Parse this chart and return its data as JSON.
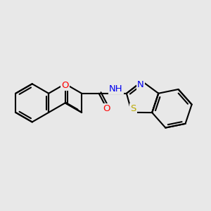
{
  "background_color": "#e8e8e8",
  "bond_color": "#000000",
  "bond_width": 1.5,
  "dbo": 0.07,
  "atom_colors": {
    "O": "#ff0000",
    "N": "#0000ee",
    "S": "#bbaa00",
    "C": "#000000"
  },
  "font_size": 9.5,
  "fig_width": 3.0,
  "fig_height": 3.0
}
